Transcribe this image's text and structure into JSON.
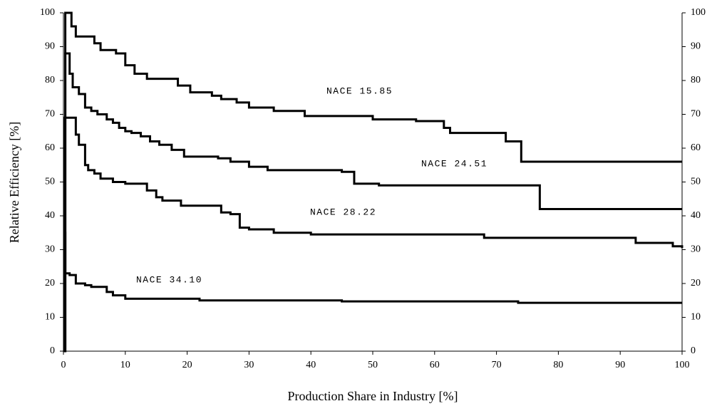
{
  "chart_data": {
    "type": "step-line",
    "xlabel": "Production Share in Industry [%]",
    "ylabel": "Relative Efficiency [%]",
    "xlim": [
      0,
      100
    ],
    "xticks": [
      0,
      10,
      20,
      30,
      40,
      50,
      60,
      70,
      80,
      90,
      100
    ],
    "ylim": [
      0,
      100
    ],
    "yticks": [
      0,
      10,
      20,
      30,
      40,
      50,
      60,
      70,
      80,
      90,
      100
    ],
    "y2lim": [
      0,
      100
    ],
    "y2ticks": [
      0,
      10,
      20,
      30,
      40,
      50,
      60,
      70,
      80,
      90,
      100
    ],
    "grid": false,
    "annotations": [
      "NACE 15.85",
      "NACE 24.51",
      "NACE 28.22",
      "NACE 34.10"
    ],
    "series": [
      {
        "color": "#000000",
        "x": [
          0,
          0.3,
          1.3,
          2,
          5,
          6,
          8.5,
          10,
          11.5,
          13.5,
          18.5,
          20.5,
          24,
          25.5,
          28,
          30,
          34,
          39,
          50,
          57,
          61.5,
          62.5,
          71.5,
          74,
          100
        ],
        "values": [
          0,
          100,
          96,
          93,
          91,
          89,
          88,
          84.5,
          82,
          80.5,
          78.5,
          76.5,
          75.5,
          74.5,
          73.5,
          72,
          71,
          69.5,
          68.5,
          68,
          66,
          64.5,
          62,
          56,
          56
        ]
      },
      {
        "color": "#000000",
        "x": [
          0,
          0.3,
          1,
          1.5,
          2.5,
          3.5,
          4.5,
          5.5,
          7,
          8,
          9,
          10,
          11,
          12.5,
          14,
          15.5,
          17.5,
          19.5,
          25,
          27,
          30,
          33,
          45,
          47,
          51,
          77,
          100
        ],
        "values": [
          0,
          88,
          82,
          78,
          76,
          72,
          71,
          70,
          68.5,
          67.5,
          66,
          65,
          64.5,
          63.5,
          62,
          61,
          59.5,
          57.5,
          57,
          56,
          54.5,
          53.5,
          53,
          49.5,
          49,
          42,
          42
        ]
      },
      {
        "color": "#000000",
        "x": [
          0,
          0.2,
          2,
          2.5,
          3.5,
          4,
          5,
          6,
          8,
          10,
          13.5,
          15,
          16,
          19,
          25.5,
          27,
          28.5,
          30,
          34,
          40,
          68,
          92.5,
          98.5,
          100
        ],
        "values": [
          0,
          69,
          64,
          61,
          55,
          53.5,
          52.5,
          51,
          50,
          49.5,
          47.5,
          45.5,
          44.5,
          43,
          41,
          40.5,
          36.5,
          36,
          35,
          34.5,
          33.5,
          32,
          31,
          30.5
        ]
      },
      {
        "color": "#000000",
        "x": [
          0,
          0.3,
          1,
          2,
          3.5,
          4.5,
          7,
          8,
          10,
          22,
          45,
          73.5,
          100
        ],
        "values": [
          35,
          23,
          22.5,
          20,
          19.5,
          19,
          17.5,
          16.5,
          15.5,
          15,
          14.7,
          14.3,
          14.3
        ]
      }
    ]
  }
}
